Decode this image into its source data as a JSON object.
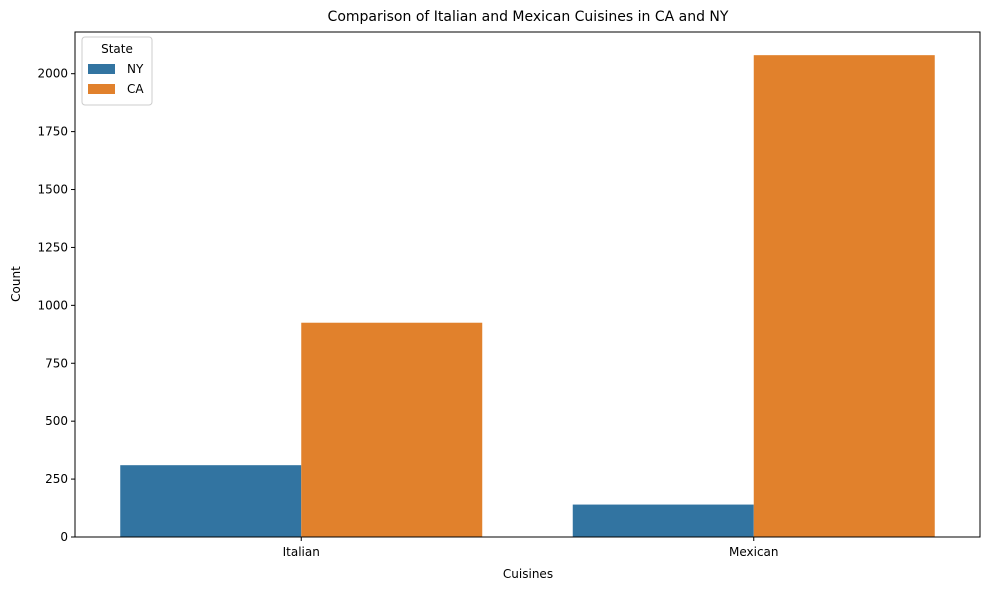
{
  "chart_data": {
    "type": "bar",
    "title": "Comparison of Italian and Mexican Cuisines in CA and NY",
    "xlabel": "Cuisines",
    "ylabel": "Count",
    "categories": [
      "Italian",
      "Mexican"
    ],
    "series": [
      {
        "name": "NY",
        "color": "#3274a1",
        "values": [
          310,
          140
        ]
      },
      {
        "name": "CA",
        "color": "#e1812c",
        "values": [
          925,
          2080
        ]
      }
    ],
    "ylim": [
      0,
      2180
    ],
    "yticks": [
      0,
      250,
      500,
      750,
      1000,
      1250,
      1500,
      1750,
      2000
    ],
    "ytick_labels": [
      "0",
      "250",
      "500",
      "750",
      "1000",
      "1250",
      "1500",
      "1750",
      "2000"
    ],
    "grid": false,
    "legend": {
      "title": "State",
      "placement": "top-left"
    }
  }
}
